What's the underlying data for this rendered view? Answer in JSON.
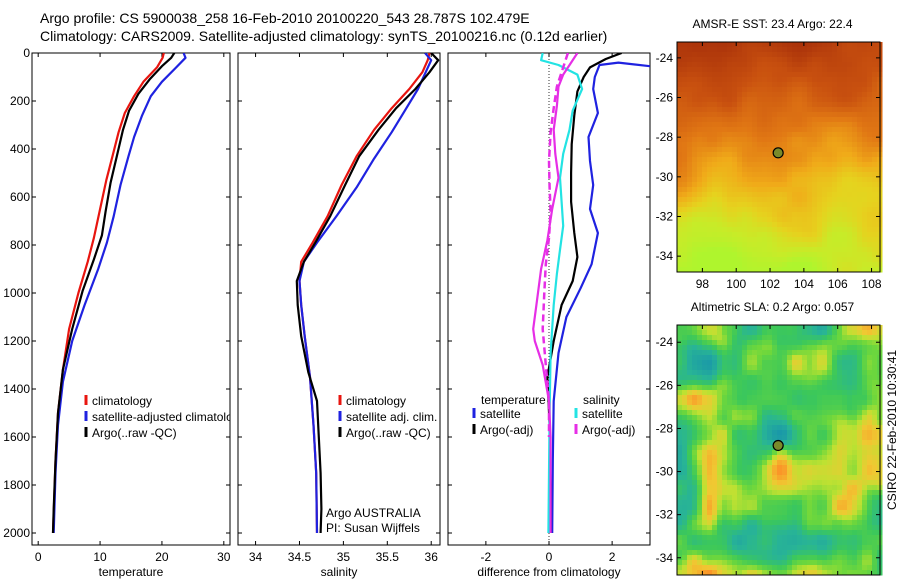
{
  "header": {
    "line1": "Argo profile: CS 5900038_258 16-Feb-2010 20100220_543 28.787S 102.479E",
    "line2": "Climatology: CARS2009. Satellite-adjusted climatology: synTS_20100216.nc (0.12d earlier)"
  },
  "stamp": "CSIRO 22-Feb-2010 10:30:41",
  "colors": {
    "red": "#e8150f",
    "blue": "#1f22e0",
    "black": "#000000",
    "cyan": "#23e3e3",
    "magenta": "#e62ee6"
  },
  "chart_data": [
    {
      "type": "line",
      "panel": "temperature",
      "xlabel": "temperature",
      "ylabel": "",
      "xlim": [
        -1,
        31
      ],
      "ylim": [
        2050,
        0
      ],
      "y_reversed": true,
      "xticks": [
        0,
        10,
        20,
        30
      ],
      "yticks": [
        0,
        200,
        400,
        600,
        800,
        1000,
        1200,
        1400,
        1600,
        1800,
        2000
      ],
      "legend": [
        "climatology",
        "satellite-adjusted climatology",
        "Argo(..raw -QC)"
      ],
      "legend_visible": [
        "climatology",
        "satellite-adjusted climatolo",
        "Argo(..raw -QC)"
      ],
      "series": [
        {
          "name": "climatology",
          "color": "red",
          "dash": "solid",
          "points": [
            [
              20.3,
              0
            ],
            [
              20.1,
              20
            ],
            [
              19.2,
              60
            ],
            [
              17.0,
              120
            ],
            [
              15.5,
              180
            ],
            [
              14.0,
              250
            ],
            [
              13.0,
              330
            ],
            [
              12.1,
              420
            ],
            [
              11.0,
              530
            ],
            [
              10.0,
              650
            ],
            [
              9.0,
              770
            ],
            [
              8.0,
              870
            ],
            [
              6.5,
              1000
            ],
            [
              5.0,
              1150
            ],
            [
              4.0,
              1320
            ],
            [
              3.2,
              1500
            ],
            [
              2.8,
              1700
            ],
            [
              2.6,
              1850
            ],
            [
              2.4,
              2000
            ]
          ]
        },
        {
          "name": "satellite-adjusted climatology",
          "color": "blue",
          "dash": "solid",
          "points": [
            [
              23.5,
              0
            ],
            [
              23.8,
              20
            ],
            [
              22.3,
              60
            ],
            [
              20.0,
              120
            ],
            [
              18.2,
              180
            ],
            [
              16.8,
              260
            ],
            [
              15.5,
              350
            ],
            [
              14.6,
              430
            ],
            [
              13.3,
              550
            ],
            [
              12.2,
              680
            ],
            [
              11.1,
              790
            ],
            [
              9.7,
              900
            ],
            [
              7.5,
              1050
            ],
            [
              5.5,
              1200
            ],
            [
              4.0,
              1370
            ],
            [
              3.2,
              1550
            ],
            [
              2.8,
              1750
            ],
            [
              2.5,
              2000
            ]
          ]
        },
        {
          "name": "Argo(..raw -QC)",
          "color": "black",
          "dash": "solid",
          "points": [
            [
              22.0,
              0
            ],
            [
              21.5,
              20
            ],
            [
              20.0,
              55
            ],
            [
              18.0,
              110
            ],
            [
              16.2,
              170
            ],
            [
              14.7,
              240
            ],
            [
              13.7,
              320
            ],
            [
              12.8,
              420
            ],
            [
              11.7,
              540
            ],
            [
              10.9,
              660
            ],
            [
              10.3,
              760
            ],
            [
              9.0,
              860
            ],
            [
              7.2,
              990
            ],
            [
              5.5,
              1150
            ],
            [
              4.0,
              1320
            ],
            [
              3.2,
              1500
            ],
            [
              2.8,
              1700
            ],
            [
              2.5,
              1900
            ],
            [
              2.4,
              2000
            ]
          ]
        }
      ]
    },
    {
      "type": "line",
      "panel": "salinity",
      "xlabel": "salinity",
      "ylabel": "",
      "xlim": [
        33.8,
        36.1
      ],
      "ylim": [
        2050,
        0
      ],
      "y_reversed": true,
      "xticks": [
        34,
        34.5,
        35,
        35.5,
        36
      ],
      "yticks": [
        0,
        200,
        400,
        600,
        800,
        1000,
        1200,
        1400,
        1600,
        1800,
        2000
      ],
      "legend": [
        "climatology",
        "satellite adj. clim.",
        "Argo(..raw -QC)"
      ],
      "annotations": [
        "Argo AUSTRALIA",
        "PI: Susan Wijffels"
      ],
      "series": [
        {
          "name": "climatology",
          "color": "red",
          "dash": "solid",
          "points": [
            [
              35.98,
              0
            ],
            [
              35.96,
              30
            ],
            [
              35.9,
              80
            ],
            [
              35.75,
              150
            ],
            [
              35.55,
              230
            ],
            [
              35.35,
              320
            ],
            [
              35.15,
              430
            ],
            [
              34.98,
              550
            ],
            [
              34.82,
              680
            ],
            [
              34.65,
              790
            ],
            [
              34.52,
              870
            ],
            [
              34.5,
              950
            ],
            [
              34.52,
              1050
            ],
            [
              34.56,
              1180
            ],
            [
              34.62,
              1350
            ],
            [
              34.66,
              1550
            ],
            [
              34.69,
              1750
            ],
            [
              34.7,
              2000
            ]
          ]
        },
        {
          "name": "satellite adj. clim.",
          "color": "blue",
          "dash": "solid",
          "points": [
            [
              35.93,
              0
            ],
            [
              36.0,
              30
            ],
            [
              35.95,
              70
            ],
            [
              35.85,
              150
            ],
            [
              35.7,
              240
            ],
            [
              35.55,
              330
            ],
            [
              35.35,
              440
            ],
            [
              35.15,
              560
            ],
            [
              34.92,
              680
            ],
            [
              34.7,
              790
            ],
            [
              34.55,
              870
            ],
            [
              34.5,
              950
            ],
            [
              34.52,
              1050
            ],
            [
              34.56,
              1180
            ],
            [
              34.62,
              1350
            ],
            [
              34.66,
              1550
            ],
            [
              34.69,
              1750
            ],
            [
              34.7,
              2000
            ]
          ]
        },
        {
          "name": "Argo(..raw -QC)",
          "color": "black",
          "dash": "solid",
          "points": [
            [
              36.0,
              0
            ],
            [
              36.08,
              30
            ],
            [
              35.98,
              80
            ],
            [
              35.82,
              150
            ],
            [
              35.6,
              230
            ],
            [
              35.4,
              320
            ],
            [
              35.18,
              430
            ],
            [
              35.02,
              550
            ],
            [
              34.85,
              680
            ],
            [
              34.68,
              790
            ],
            [
              34.55,
              870
            ],
            [
              34.47,
              950
            ],
            [
              34.48,
              1050
            ],
            [
              34.52,
              1180
            ],
            [
              34.6,
              1330
            ],
            [
              34.7,
              1450
            ],
            [
              34.72,
              1600
            ],
            [
              34.74,
              1750
            ],
            [
              34.75,
              1900
            ],
            [
              34.74,
              2000
            ]
          ]
        }
      ]
    },
    {
      "type": "line",
      "panel": "difference",
      "xlabel": "difference from climatology",
      "ylabel": "",
      "xlim": [
        -3.2,
        3.2
      ],
      "ylim": [
        2050,
        0
      ],
      "y_reversed": true,
      "xticks": [
        -2,
        0,
        2
      ],
      "yticks": [
        0,
        200,
        400,
        600,
        800,
        1000,
        1200,
        1400,
        1600,
        1800,
        2000
      ],
      "legend_groups": [
        "temperature",
        "salinity"
      ],
      "legend": [
        "satellite",
        "Argo(-adj)",
        "satellite",
        "Argo(-adj)"
      ],
      "series": [
        {
          "name": "temperature satellite",
          "color": "blue",
          "dash": "solid",
          "points": [
            [
              3.2,
              55
            ],
            [
              2.2,
              40
            ],
            [
              1.6,
              50
            ],
            [
              1.45,
              100
            ],
            [
              1.4,
              150
            ],
            [
              1.55,
              250
            ],
            [
              1.25,
              350
            ],
            [
              1.3,
              450
            ],
            [
              1.4,
              550
            ],
            [
              1.3,
              650
            ],
            [
              1.55,
              750
            ],
            [
              1.35,
              880
            ],
            [
              1.0,
              980
            ],
            [
              0.55,
              1100
            ],
            [
              0.3,
              1250
            ],
            [
              0.15,
              1450
            ],
            [
              0.12,
              1700
            ],
            [
              0.1,
              2000
            ]
          ]
        },
        {
          "name": "temperature Argo(-adj)",
          "color": "black",
          "dash": "solid",
          "points": [
            [
              2.3,
              0
            ],
            [
              1.8,
              25
            ],
            [
              1.3,
              60
            ],
            [
              1.1,
              100
            ],
            [
              0.9,
              160
            ],
            [
              0.8,
              260
            ],
            [
              0.72,
              380
            ],
            [
              0.7,
              500
            ],
            [
              0.7,
              620
            ],
            [
              0.8,
              750
            ],
            [
              0.9,
              850
            ],
            [
              0.75,
              950
            ],
            [
              0.4,
              1050
            ],
            [
              0.15,
              1200
            ],
            [
              -0.05,
              1350
            ],
            [
              0.02,
              1550
            ],
            [
              0.05,
              1800
            ],
            [
              0.05,
              2000
            ]
          ]
        },
        {
          "name": "salinity satellite",
          "color": "cyan",
          "dash": "solid",
          "points": [
            [
              -0.2,
              0
            ],
            [
              -0.25,
              30
            ],
            [
              0.3,
              50
            ],
            [
              0.9,
              90
            ],
            [
              1.05,
              150
            ],
            [
              0.75,
              240
            ],
            [
              0.65,
              320
            ],
            [
              0.45,
              420
            ],
            [
              0.35,
              520
            ],
            [
              0.4,
              620
            ],
            [
              0.45,
              720
            ],
            [
              0.35,
              820
            ],
            [
              0.25,
              920
            ],
            [
              0.15,
              1050
            ],
            [
              0.05,
              1250
            ],
            [
              0.02,
              1500
            ],
            [
              0.0,
              1750
            ],
            [
              -0.02,
              2000
            ]
          ]
        },
        {
          "name": "salinity Argo(-adj)",
          "color": "magenta",
          "dash": "solid",
          "points": [
            [
              0.9,
              0
            ],
            [
              0.7,
              40
            ],
            [
              0.45,
              90
            ],
            [
              0.3,
              140
            ],
            [
              0.25,
              220
            ],
            [
              0.15,
              320
            ],
            [
              0.2,
              420
            ],
            [
              0.3,
              520
            ],
            [
              0.1,
              650
            ],
            [
              -0.05,
              780
            ],
            [
              -0.25,
              900
            ],
            [
              -0.4,
              1050
            ],
            [
              -0.5,
              1150
            ],
            [
              -0.45,
              1200
            ],
            [
              -0.2,
              1300
            ],
            [
              0.0,
              1450
            ],
            [
              0.05,
              1600
            ],
            [
              0.05,
              1800
            ],
            [
              0.05,
              2000
            ]
          ]
        },
        {
          "name": "salinity Argo(-adj) dashed",
          "color": "magenta",
          "dash": "dashed",
          "points": [
            [
              0.6,
              0
            ],
            [
              0.45,
              60
            ],
            [
              0.25,
              140
            ],
            [
              0.15,
              230
            ],
            [
              0.05,
              330
            ],
            [
              0.0,
              450
            ],
            [
              0.02,
              560
            ],
            [
              0.05,
              660
            ],
            [
              0.0,
              770
            ],
            [
              -0.1,
              880
            ],
            [
              -0.15,
              1000
            ],
            [
              -0.2,
              1150
            ],
            [
              -0.1,
              1300
            ],
            [
              0.0,
              1450
            ],
            [
              0.0,
              1600
            ]
          ]
        }
      ]
    },
    {
      "type": "heatmap",
      "panel": "sst",
      "title": "AMSR-E SST: 23.4  Argo: 22.4",
      "xlim": [
        96.5,
        108.5
      ],
      "ylim": [
        -34.8,
        -23.2
      ],
      "xticks": [
        98,
        100,
        102,
        104,
        106,
        108
      ],
      "yticks": [
        -24,
        -26,
        -28,
        -30,
        -32,
        -34
      ],
      "colormap": "sst",
      "marker": {
        "x": 102.48,
        "y": -28.79
      }
    },
    {
      "type": "heatmap",
      "panel": "sla",
      "title": "Altimetric SLA: 0.2  Argo: 0.057",
      "xlim": [
        96.5,
        108.5
      ],
      "ylim": [
        -34.8,
        -23.2
      ],
      "xticks": [
        98,
        100,
        102,
        104,
        106,
        108
      ],
      "yticks": [
        -24,
        -26,
        -28,
        -30,
        -32,
        -34
      ],
      "colormap": "sla",
      "marker": {
        "x": 102.48,
        "y": -28.79
      }
    }
  ]
}
